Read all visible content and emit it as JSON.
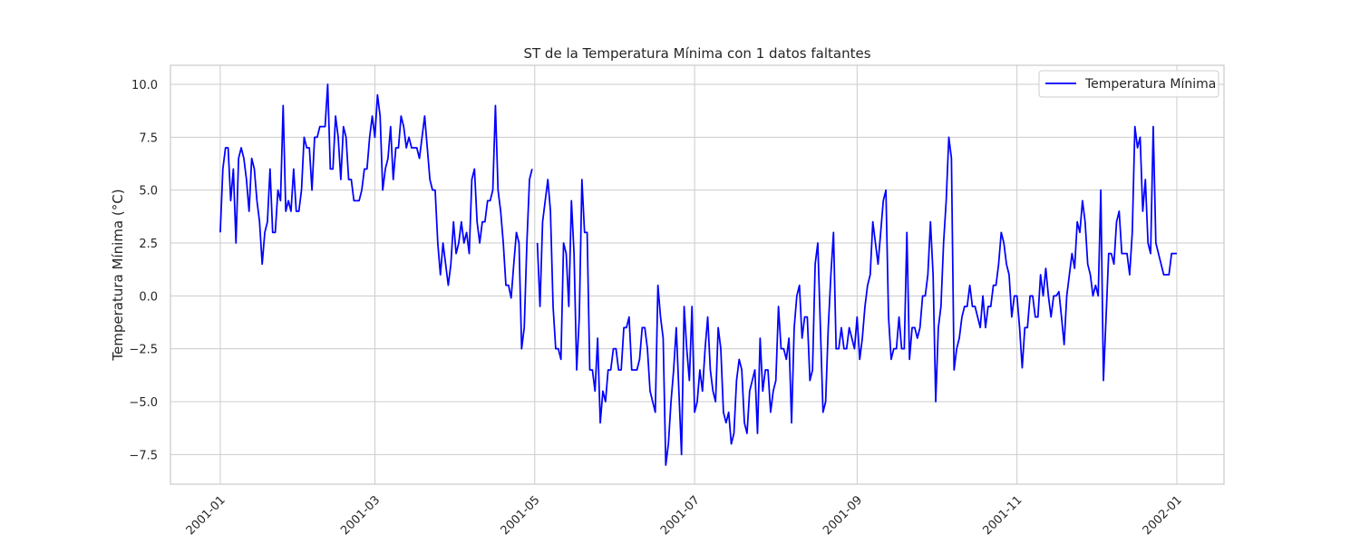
{
  "chart_data": {
    "type": "line",
    "title": "ST de la Temperatura Mínima con 1 datos faltantes",
    "xlabel": "",
    "ylabel": "Temperatura Mínima (°C)",
    "ylim": [
      -8.9,
      10.9
    ],
    "xlim": [
      "2000-12-13",
      "2002-01-19"
    ],
    "grid": true,
    "legend": "top-right",
    "line_color": "#0000ff",
    "y_ticks": [
      "10.0",
      "7.5",
      "5.0",
      "2.5",
      "0.0",
      "−2.5",
      "−5.0",
      "−7.5"
    ],
    "y_tick_values": [
      10.0,
      7.5,
      5.0,
      2.5,
      0.0,
      -2.5,
      -5.0,
      -7.5
    ],
    "x_ticks": [
      "2001-01",
      "2001-03",
      "2001-05",
      "2001-07",
      "2001-09",
      "2001-11",
      "2002-01"
    ],
    "x_tick_dates": [
      "2001-01-01",
      "2001-03-01",
      "2001-05-01",
      "2001-07-01",
      "2001-09-01",
      "2001-11-01",
      "2002-01-01"
    ],
    "series": [
      {
        "name": "Temperatura Mínima",
        "x_start": "2001-01-01",
        "x_step": "1 day",
        "values": [
          3,
          6,
          7,
          7,
          4.5,
          6,
          2.5,
          6.5,
          7,
          6.5,
          5.5,
          4,
          6.5,
          6,
          4.5,
          3.5,
          1.5,
          3,
          3.5,
          6,
          3,
          3,
          5,
          4.5,
          9,
          4,
          4.5,
          4,
          6,
          4,
          4,
          5,
          7.5,
          7,
          7,
          5,
          7.5,
          7.5,
          8,
          8,
          8,
          10,
          6,
          6,
          8.5,
          7.5,
          5.5,
          8,
          7.5,
          5.5,
          5.5,
          4.5,
          4.5,
          4.5,
          5,
          6,
          6,
          7.5,
          8.5,
          7.5,
          9.5,
          8.5,
          5,
          6,
          6.5,
          8,
          5.5,
          7,
          7,
          8.5,
          8,
          7,
          7.5,
          7,
          7,
          7,
          6.5,
          7.5,
          8.5,
          7,
          5.5,
          5,
          5,
          2.5,
          1,
          2.5,
          1.5,
          0.5,
          1.5,
          3.5,
          2,
          2.5,
          3.5,
          2.5,
          3,
          2,
          5.5,
          6,
          3.5,
          2.5,
          3.5,
          3.5,
          4.5,
          4.5,
          5,
          9,
          5,
          4,
          2.5,
          0.5,
          0.5,
          -0.1,
          1.5,
          3,
          2.5,
          -2.5,
          -1.5,
          2.5,
          5.5,
          6,
          null,
          2.5,
          -0.5,
          3.5,
          4.5,
          5.5,
          4,
          -0.5,
          -2.5,
          -2.5,
          -3,
          2.5,
          2,
          -0.5,
          4.5,
          2,
          -3.5,
          -1,
          5.5,
          3,
          3,
          -3.5,
          -3.5,
          -4.5,
          -2,
          -6,
          -4.5,
          -5,
          -3.5,
          -3.5,
          -2.5,
          -2.5,
          -3.5,
          -3.5,
          -1.5,
          -1.5,
          -1,
          -3.5,
          -3.5,
          -3.5,
          -3,
          -1.5,
          -1.5,
          -2.5,
          -4.5,
          -5,
          -5.5,
          0.5,
          -1,
          -2,
          -8,
          -7,
          -5,
          -3.5,
          -1.5,
          -4.5,
          -7.5,
          -0.5,
          -2.5,
          -4,
          -0.5,
          -5.5,
          -5,
          -3.5,
          -4.5,
          -2.5,
          -1,
          -3.5,
          -4.5,
          -5,
          -1.5,
          -2.5,
          -5.5,
          -6,
          -5.5,
          -7,
          -6.5,
          -4,
          -3,
          -3.5,
          -6,
          -6.5,
          -4.5,
          -4,
          -3.5,
          -6.5,
          -2,
          -4.5,
          -3.5,
          -3.5,
          -5.5,
          -4.5,
          -4,
          -0.5,
          -2.5,
          -2.5,
          -3,
          -2,
          -6,
          -1.5,
          0,
          0.5,
          -2,
          -1,
          -1,
          -4,
          -3.5,
          1.5,
          2.5,
          -1.5,
          -5.5,
          -5,
          -1.5,
          1,
          3,
          -2.5,
          -2.5,
          -1.5,
          -2.5,
          -2.5,
          -1.5,
          -2,
          -2.5,
          -1,
          -3,
          -2,
          -0.5,
          0.5,
          1,
          3.5,
          2.5,
          1.5,
          3,
          4.5,
          5,
          -1,
          -3,
          -2.5,
          -2.5,
          -1,
          -2.5,
          -2.5,
          3,
          -3,
          -1.5,
          -1.5,
          -2,
          -1.5,
          0,
          0,
          1,
          3.5,
          1,
          -5,
          -1.5,
          -0.5,
          2.5,
          4.5,
          7.5,
          6.5,
          -3.5,
          -2.5,
          -2,
          -1,
          -0.5,
          -0.5,
          0.5,
          -0.5,
          -0.5,
          -1,
          -1.5,
          0,
          -1.5,
          -0.5,
          -0.5,
          0.5,
          0.5,
          1.5,
          3,
          2.5,
          1.5,
          1,
          -1,
          0,
          0,
          -1.5,
          -3.4,
          -1.5,
          -1.5,
          0,
          0,
          -1,
          -1,
          1,
          0,
          1.3,
          0,
          -1,
          0,
          0,
          0.2,
          -1,
          -2.3,
          0,
          1,
          2,
          1.3,
          3.5,
          3,
          4.5,
          3.5,
          1.5,
          1,
          0,
          0.5,
          0,
          5,
          -4,
          -1,
          2,
          2,
          1.5,
          3.5,
          4,
          2,
          2,
          2,
          1,
          3,
          8,
          7,
          7.5,
          4,
          5.5,
          2.5,
          2,
          8,
          2.5,
          2,
          1.5,
          1,
          1,
          1,
          2,
          2,
          2
        ]
      }
    ]
  }
}
